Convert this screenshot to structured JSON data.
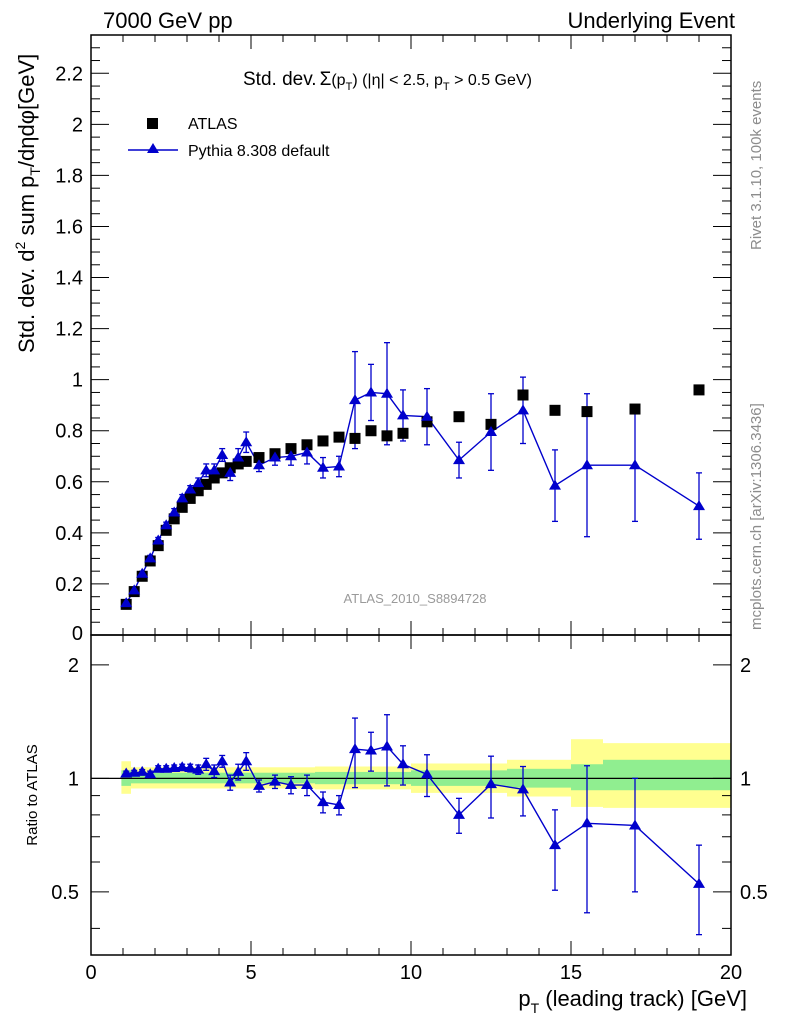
{
  "header": {
    "left": "7000 GeV pp",
    "right": "Underlying Event"
  },
  "side_text": {
    "rivet": "Rivet 3.1.10,  100k events",
    "mcplots": "mcplots.cern.ch [arXiv:1306.3436]"
  },
  "watermark": "ATLAS_2010_S8894728",
  "chart_data": [
    {
      "type": "scatter",
      "panel": "main",
      "title_parts": {
        "prefix": "Std. dev.",
        "sigma": "Σ",
        "paren_open": "(p",
        "paren_sub": "T",
        "paren_close": ")",
        "cond_a": " (|η| < 2.5, p",
        "cond_sub": "T",
        "cond_b": " > 0.5 GeV)"
      },
      "ylabel_parts": {
        "a": "Std. dev. d",
        "sup": "2",
        "b": " sum p",
        "sub": "T",
        "c": "/dηdφ[GeV]"
      },
      "xlim": [
        0,
        20
      ],
      "ylim": [
        0,
        2.35
      ],
      "yticks": [
        0.2,
        0.4,
        0.6,
        0.8,
        1,
        1.2,
        1.4,
        1.6,
        1.8,
        2,
        2.2
      ],
      "ytick_labels": [
        "0.2",
        "0.4",
        "0.6",
        "0.8",
        "1",
        "1.2",
        "1.4",
        "1.6",
        "1.8",
        "2",
        "2.2"
      ],
      "ytick_zero_label": "0",
      "legend": {
        "atlas": "ATLAS",
        "pythia": "Pythia 8.308 default",
        "position": "top-left"
      },
      "series": [
        {
          "name": "ATLAS",
          "marker": "square",
          "color": "#000000",
          "points": [
            [
              1.1,
              0.12
            ],
            [
              1.35,
              0.17
            ],
            [
              1.6,
              0.23
            ],
            [
              1.85,
              0.29
            ],
            [
              2.1,
              0.35
            ],
            [
              2.35,
              0.41
            ],
            [
              2.6,
              0.455
            ],
            [
              2.85,
              0.5
            ],
            [
              3.1,
              0.535
            ],
            [
              3.35,
              0.565
            ],
            [
              3.6,
              0.59
            ],
            [
              3.85,
              0.615
            ],
            [
              4.1,
              0.635
            ],
            [
              4.35,
              0.655
            ],
            [
              4.6,
              0.67
            ],
            [
              4.85,
              0.68
            ],
            [
              5.25,
              0.695
            ],
            [
              5.75,
              0.71
            ],
            [
              6.25,
              0.73
            ],
            [
              6.75,
              0.745
            ],
            [
              7.25,
              0.76
            ],
            [
              7.75,
              0.775
            ],
            [
              8.25,
              0.77
            ],
            [
              8.75,
              0.8
            ],
            [
              9.25,
              0.78
            ],
            [
              9.75,
              0.79
            ],
            [
              10.5,
              0.835
            ],
            [
              11.5,
              0.855
            ],
            [
              12.5,
              0.825
            ],
            [
              13.5,
              0.94
            ],
            [
              14.5,
              0.88
            ],
            [
              15.5,
              0.875
            ],
            [
              17.0,
              0.885
            ],
            [
              19.0,
              0.96
            ]
          ]
        },
        {
          "name": "Pythia 8.308 default",
          "marker": "triangle",
          "color": "#0000cc",
          "points": [
            [
              1.1,
              0.125,
              0.01
            ],
            [
              1.35,
              0.175,
              0.01
            ],
            [
              1.6,
              0.24,
              0.01
            ],
            [
              1.85,
              0.3,
              0.012
            ],
            [
              2.1,
              0.37,
              0.012
            ],
            [
              2.35,
              0.43,
              0.012
            ],
            [
              2.6,
              0.48,
              0.015
            ],
            [
              2.85,
              0.535,
              0.015
            ],
            [
              3.1,
              0.57,
              0.015
            ],
            [
              3.35,
              0.595,
              0.02
            ],
            [
              3.6,
              0.645,
              0.025
            ],
            [
              3.85,
              0.645,
              0.025
            ],
            [
              4.1,
              0.705,
              0.025
            ],
            [
              4.35,
              0.635,
              0.03
            ],
            [
              4.6,
              0.695,
              0.035
            ],
            [
              4.85,
              0.755,
              0.04
            ],
            [
              5.25,
              0.665,
              0.025
            ],
            [
              5.75,
              0.695,
              0.03
            ],
            [
              6.25,
              0.7,
              0.035
            ],
            [
              6.75,
              0.715,
              0.045
            ],
            [
              7.25,
              0.655,
              0.04
            ],
            [
              7.75,
              0.66,
              0.04
            ],
            [
              8.25,
              0.92,
              0.19
            ],
            [
              8.75,
              0.95,
              0.11
            ],
            [
              9.25,
              0.945,
              0.2
            ],
            [
              9.75,
              0.86,
              0.1
            ],
            [
              10.5,
              0.855,
              0.11
            ],
            [
              11.5,
              0.685,
              0.07
            ],
            [
              12.5,
              0.795,
              0.15
            ],
            [
              13.5,
              0.88,
              0.13
            ],
            [
              14.5,
              0.585,
              0.14
            ],
            [
              15.5,
              0.665,
              0.28
            ],
            [
              17.0,
              0.665,
              0.22
            ],
            [
              19.0,
              0.505,
              0.13
            ]
          ]
        }
      ]
    },
    {
      "type": "line",
      "panel": "ratio",
      "ylabel": "Ratio to ATLAS",
      "xlabel_parts": {
        "a": "p",
        "sub": "T",
        "b": " (leading track) [GeV]"
      },
      "xlim": [
        0,
        20
      ],
      "ylim": [
        0.34,
        2.4
      ],
      "yscale": "log",
      "xticks": [
        0,
        5,
        10,
        15,
        20
      ],
      "xtick_labels": [
        "0",
        "5",
        "10",
        "15",
        "20"
      ],
      "yticks": [
        0.5,
        1,
        2
      ],
      "ytick_labels": [
        "0.5",
        "1",
        "2"
      ],
      "bands": [
        {
          "xlo": 0.95,
          "xhi": 1.25,
          "inner": [
            0.955,
            1.05
          ],
          "outer": [
            0.91,
            1.11
          ]
        },
        {
          "xlo": 1.25,
          "xhi": 5.0,
          "inner": [
            0.97,
            1.035
          ],
          "outer": [
            0.94,
            1.07
          ]
        },
        {
          "xlo": 5.0,
          "xhi": 7.0,
          "inner": [
            0.97,
            1.035
          ],
          "outer": [
            0.94,
            1.07
          ]
        },
        {
          "xlo": 7.0,
          "xhi": 10.0,
          "inner": [
            0.965,
            1.04
          ],
          "outer": [
            0.935,
            1.075
          ]
        },
        {
          "xlo": 10.0,
          "xhi": 13.0,
          "inner": [
            0.955,
            1.05
          ],
          "outer": [
            0.915,
            1.095
          ]
        },
        {
          "xlo": 13.0,
          "xhi": 15.0,
          "inner": [
            0.945,
            1.06
          ],
          "outer": [
            0.895,
            1.12
          ]
        },
        {
          "xlo": 15.0,
          "xhi": 16.0,
          "inner": [
            0.93,
            1.09
          ],
          "outer": [
            0.84,
            1.27
          ]
        },
        {
          "xlo": 16.0,
          "xhi": 20.0,
          "inner": [
            0.93,
            1.12
          ],
          "outer": [
            0.835,
            1.24
          ]
        }
      ],
      "band_colors": {
        "inner": "#90ee90",
        "outer": "#ffff90"
      },
      "series": [
        {
          "name": "Pythia 8.308 default",
          "color": "#0000cc",
          "points": [
            [
              1.1,
              1.03,
              0.015
            ],
            [
              1.35,
              1.035,
              0.015
            ],
            [
              1.6,
              1.04,
              0.015
            ],
            [
              1.85,
              1.025,
              0.02
            ],
            [
              2.1,
              1.06,
              0.02
            ],
            [
              2.35,
              1.06,
              0.02
            ],
            [
              2.6,
              1.065,
              0.02
            ],
            [
              2.85,
              1.07,
              0.02
            ],
            [
              3.1,
              1.065,
              0.025
            ],
            [
              3.35,
              1.055,
              0.03
            ],
            [
              3.6,
              1.09,
              0.04
            ],
            [
              3.85,
              1.045,
              0.04
            ],
            [
              4.1,
              1.11,
              0.04
            ],
            [
              4.35,
              0.975,
              0.045
            ],
            [
              4.6,
              1.04,
              0.05
            ],
            [
              4.85,
              1.11,
              0.06
            ],
            [
              5.25,
              0.955,
              0.035
            ],
            [
              5.75,
              0.98,
              0.04
            ],
            [
              6.25,
              0.96,
              0.05
            ],
            [
              6.75,
              0.96,
              0.06
            ],
            [
              7.25,
              0.865,
              0.055
            ],
            [
              7.75,
              0.85,
              0.05
            ],
            [
              8.25,
              1.195,
              0.25
            ],
            [
              8.75,
              1.185,
              0.14
            ],
            [
              9.25,
              1.215,
              0.26
            ],
            [
              9.75,
              1.09,
              0.13
            ],
            [
              10.5,
              1.025,
              0.13
            ],
            [
              11.5,
              0.8,
              0.085
            ],
            [
              12.5,
              0.965,
              0.18
            ],
            [
              13.5,
              0.935,
              0.14
            ],
            [
              14.5,
              0.665,
              0.16
            ],
            [
              15.5,
              0.76,
              0.32
            ],
            [
              17.0,
              0.75,
              0.25
            ],
            [
              19.0,
              0.525,
              0.14
            ]
          ]
        }
      ]
    }
  ]
}
